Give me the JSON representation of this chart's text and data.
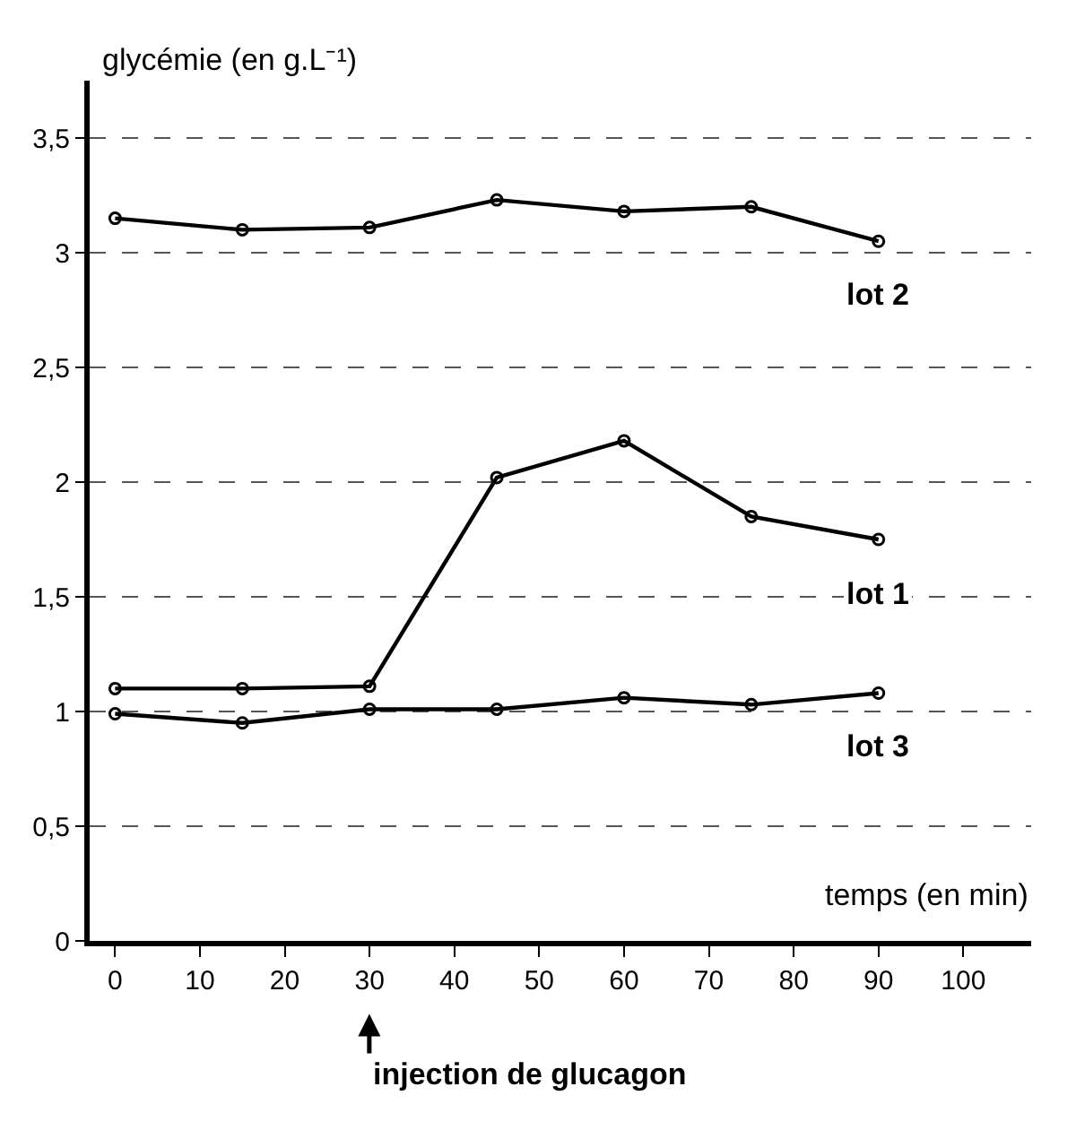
{
  "chart_data": {
    "type": "line",
    "xlabel": "temps (en min)",
    "ylabel": "glycémie (en g.L⁻¹)",
    "x": [
      0,
      15,
      30,
      45,
      60,
      75,
      90
    ],
    "series": [
      {
        "name": "lot 2",
        "color": "#000000",
        "values": [
          3.15,
          3.1,
          3.11,
          3.23,
          3.18,
          3.2,
          3.05
        ]
      },
      {
        "name": "lot 1",
        "color": "#000000",
        "values": [
          1.1,
          1.1,
          1.11,
          2.02,
          2.18,
          1.85,
          1.75
        ]
      },
      {
        "name": "lot 3",
        "color": "#000000",
        "values": [
          0.99,
          0.95,
          1.01,
          1.01,
          1.06,
          1.03,
          1.08
        ]
      }
    ],
    "xlim": [
      -3,
      108
    ],
    "ylim": [
      0,
      3.75
    ],
    "xticks": [
      0,
      10,
      20,
      30,
      40,
      50,
      60,
      70,
      80,
      90,
      100
    ],
    "yticks": [
      0,
      {
        "value": 0.5,
        "label": "0,5"
      },
      1,
      {
        "value": 1.5,
        "label": "1,5"
      },
      2,
      {
        "value": 2.5,
        "label": "2,5"
      },
      3,
      {
        "value": 3.5,
        "label": "3,5"
      }
    ],
    "annotations": [
      "injection de glucagon"
    ],
    "grid": "y",
    "marker": "circle",
    "line_style": "solid",
    "legend": false
  }
}
